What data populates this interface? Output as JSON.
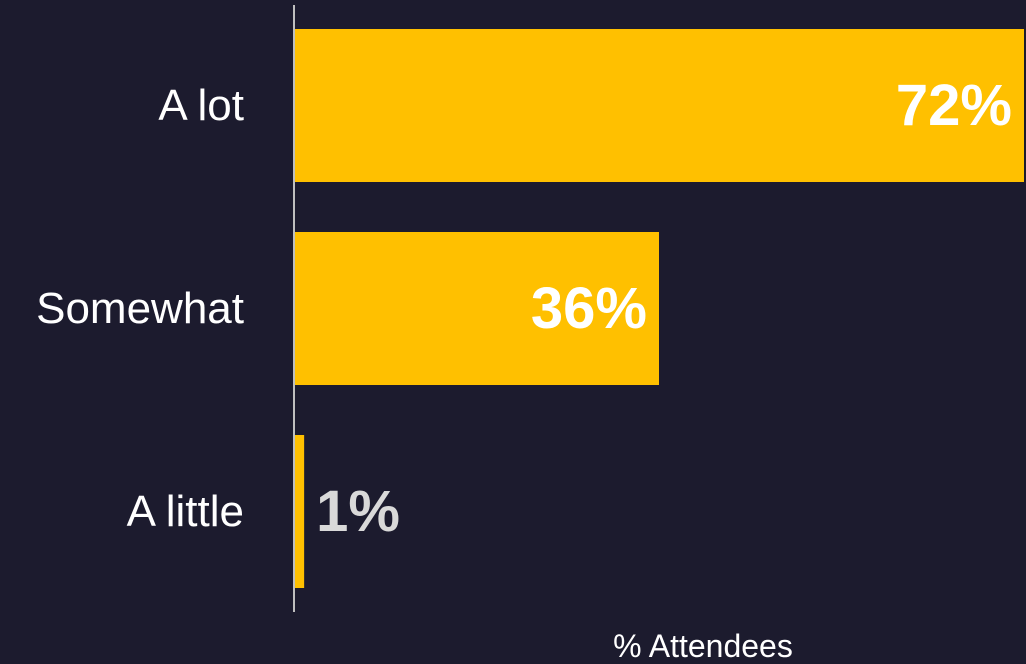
{
  "chart_data": {
    "type": "bar",
    "orientation": "horizontal",
    "categories": [
      "A lot",
      "Somewhat",
      "A little"
    ],
    "values": [
      72,
      36,
      1
    ],
    "value_labels": [
      "72%",
      "36%",
      "1%"
    ],
    "xlabel": "% Attendees",
    "ylabel": "",
    "xlim": [
      0,
      72
    ],
    "grid": false,
    "legend": "none"
  },
  "colors": {
    "background": "#1c1b2e",
    "bar": "#ffc000",
    "axis_line": "#bfbfbf",
    "label_text": "#ffffff",
    "inside_value_text": "#ffffff",
    "outside_value_text": "#d9d9d9"
  }
}
